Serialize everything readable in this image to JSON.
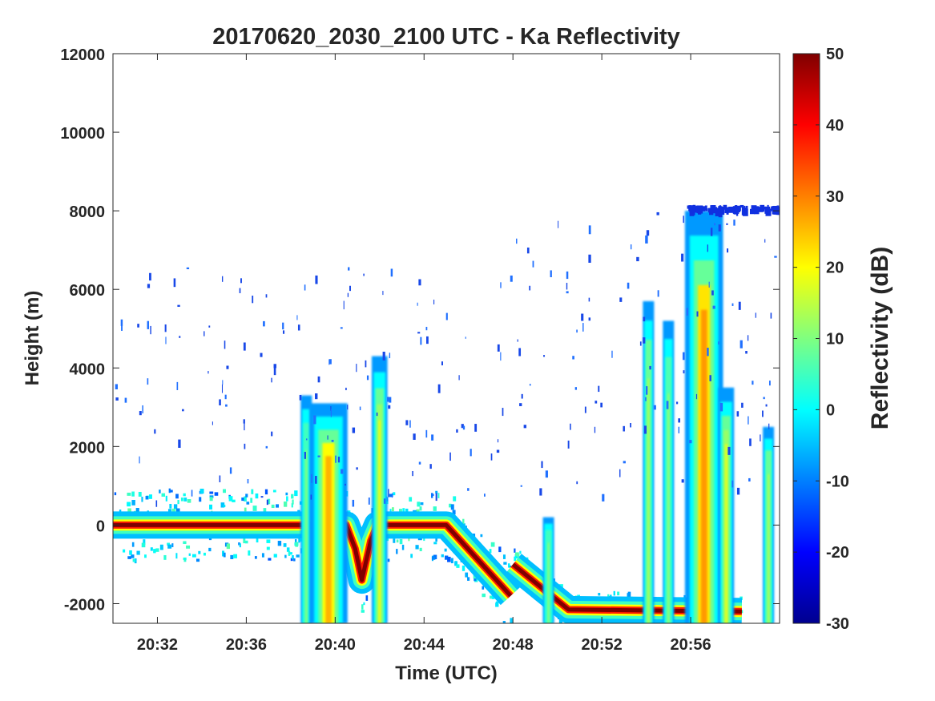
{
  "chart_data": {
    "type": "heatmap",
    "title": "20170620_2030_2100 UTC - Ka Reflectivity",
    "xlabel": "Time (UTC)",
    "ylabel": "Height (m)",
    "x_tick_labels": [
      "20:32",
      "20:36",
      "20:40",
      "20:44",
      "20:48",
      "20:52",
      "20:56"
    ],
    "x_tick_minutes": [
      32,
      36,
      40,
      44,
      48,
      52,
      56
    ],
    "xlim_minutes": [
      30,
      60
    ],
    "y_ticks": [
      -2000,
      0,
      2000,
      4000,
      6000,
      8000,
      10000,
      12000
    ],
    "ylim": [
      -2500,
      12000
    ],
    "colorbar": {
      "label": "Reflectivity (dB)",
      "ticks": [
        -30,
        -20,
        -10,
        0,
        10,
        20,
        30,
        40,
        50
      ],
      "range": [
        -30,
        50
      ],
      "colormap": "jet"
    },
    "surface_echo": [
      {
        "t": 30.0,
        "h": 0
      },
      {
        "t": 40.5,
        "h": 0
      },
      {
        "t": 40.9,
        "h": -600
      },
      {
        "t": 41.2,
        "h": -1400
      },
      {
        "t": 41.6,
        "h": -400
      },
      {
        "t": 41.9,
        "h": 0
      },
      {
        "t": 45.0,
        "h": 0
      },
      {
        "t": 47.9,
        "h": -1800
      },
      {
        "t": 48.0,
        "h": -1000
      },
      {
        "t": 50.5,
        "h": -2150
      },
      {
        "t": 58.3,
        "h": -2200
      }
    ],
    "columns": [
      {
        "t": 38.7,
        "top": 3300,
        "dbz": 5
      },
      {
        "t": 39.7,
        "top": 3100,
        "dbz": 20
      },
      {
        "t": 42.0,
        "top": 4300,
        "dbz": 12
      },
      {
        "t": 49.6,
        "top": 200,
        "dbz": 5
      },
      {
        "t": 54.1,
        "top": 5700,
        "dbz": 8
      },
      {
        "t": 55.0,
        "top": 5200,
        "dbz": 6
      },
      {
        "t": 56.6,
        "top": 8000,
        "dbz": 22
      },
      {
        "t": 57.6,
        "top": 3500,
        "dbz": 12
      },
      {
        "t": 59.5,
        "top": 2500,
        "dbz": 8
      }
    ]
  }
}
